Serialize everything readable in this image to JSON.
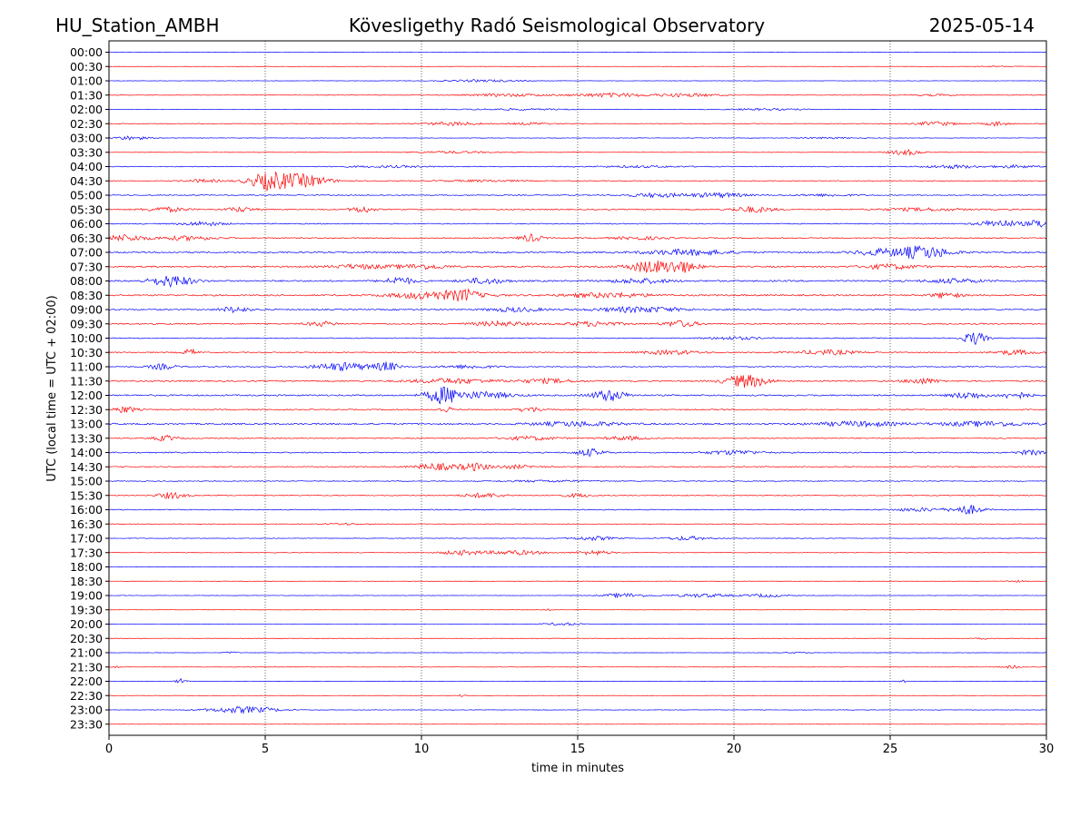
{
  "header": {
    "station": "HU_Station_AMBH",
    "observatory": "Kövesligethy Radó Seismological Observatory",
    "date": "2025-05-14"
  },
  "chart_data": {
    "type": "line",
    "title": "Kövesligethy Radó Seismological Observatory",
    "xlabel": "time in minutes",
    "ylabel": "UTC (local time = UTC + 02:00)",
    "xlim": [
      0,
      30
    ],
    "xticks": [
      0,
      5,
      10,
      15,
      20,
      25,
      30
    ],
    "grid": "vertical dotted lines at x ticks",
    "colors": {
      "even_row": "#0000ff",
      "odd_row": "#ff0000",
      "grid": "#000000"
    },
    "rows": [
      {
        "label": "00:00",
        "noise": 0.4,
        "events": []
      },
      {
        "label": "00:30",
        "noise": 0.4,
        "events": [
          [
            28.5,
            2,
            0.5
          ]
        ]
      },
      {
        "label": "01:00",
        "noise": 0.6,
        "events": [
          [
            12,
            3,
            1.2
          ]
        ]
      },
      {
        "label": "01:30",
        "noise": 0.8,
        "events": [
          [
            12.8,
            3,
            1.5
          ],
          [
            16,
            2.5,
            2.2
          ],
          [
            18.5,
            2.5,
            1.8
          ],
          [
            26.5,
            1.5,
            1
          ]
        ]
      },
      {
        "label": "02:00",
        "noise": 0.6,
        "events": [
          [
            13,
            4,
            0.9
          ],
          [
            21,
            3,
            1
          ]
        ]
      },
      {
        "label": "02:30",
        "noise": 0.9,
        "events": [
          [
            11,
            2,
            2
          ],
          [
            13.5,
            1.5,
            1.3
          ],
          [
            26.5,
            1.5,
            2.2
          ],
          [
            28.4,
            0.8,
            2.5
          ]
        ]
      },
      {
        "label": "03:00",
        "noise": 0.7,
        "events": [
          [
            0.7,
            1.2,
            2.2
          ],
          [
            23,
            2,
            0.8
          ]
        ]
      },
      {
        "label": "03:30",
        "noise": 0.7,
        "events": [
          [
            11,
            3,
            1.2
          ],
          [
            25.5,
            1.2,
            3
          ]
        ]
      },
      {
        "label": "04:00",
        "noise": 1.2,
        "events": [
          [
            9,
            3,
            1
          ],
          [
            17,
            3,
            1
          ],
          [
            27,
            2,
            1.8
          ],
          [
            29,
            1.5,
            1.5
          ]
        ]
      },
      {
        "label": "04:30",
        "noise": 1.1,
        "events": [
          [
            5.1,
            1.4,
            9
          ],
          [
            6.2,
            1.8,
            7
          ],
          [
            3,
            1.5,
            1.5
          ],
          [
            12,
            3,
            1
          ]
        ]
      },
      {
        "label": "05:00",
        "noise": 1.4,
        "events": [
          [
            17.5,
            2,
            2.2
          ],
          [
            19.5,
            2,
            2.5
          ],
          [
            23,
            2,
            1.2
          ]
        ]
      },
      {
        "label": "05:30",
        "noise": 1.7,
        "events": [
          [
            1.8,
            1.5,
            2.5
          ],
          [
            4.2,
            1,
            2.5
          ],
          [
            8.1,
            0.8,
            3.5
          ],
          [
            20.6,
            1.5,
            3
          ],
          [
            26,
            3,
            1.5
          ]
        ]
      },
      {
        "label": "06:00",
        "noise": 1.5,
        "events": [
          [
            3,
            1.5,
            2.2
          ],
          [
            28.5,
            1.5,
            4
          ],
          [
            29.8,
            0.8,
            4.5
          ]
        ]
      },
      {
        "label": "06:30",
        "noise": 1.7,
        "events": [
          [
            0.5,
            1.5,
            3.5
          ],
          [
            2.5,
            2,
            2.2
          ],
          [
            13.5,
            0.8,
            4
          ],
          [
            17,
            2,
            1.5
          ]
        ]
      },
      {
        "label": "07:00",
        "noise": 2.2,
        "events": [
          [
            18.5,
            3,
            3
          ],
          [
            26,
            2,
            7
          ],
          [
            24.5,
            1.5,
            3
          ]
        ]
      },
      {
        "label": "07:30",
        "noise": 2.2,
        "events": [
          [
            10,
            2,
            2.5
          ],
          [
            17.3,
            1.5,
            6.5
          ],
          [
            18.3,
            1.2,
            6
          ],
          [
            25,
            2,
            2.5
          ],
          [
            8,
            2,
            2.2
          ]
        ]
      },
      {
        "label": "08:00",
        "noise": 2.4,
        "events": [
          [
            2,
            1.5,
            6
          ],
          [
            9.3,
            1,
            4
          ],
          [
            12,
            1.5,
            3
          ],
          [
            17,
            2,
            2.5
          ],
          [
            27,
            2,
            2.2
          ]
        ]
      },
      {
        "label": "08:30",
        "noise": 2.2,
        "events": [
          [
            10.5,
            3,
            4.5
          ],
          [
            11.4,
            0.8,
            4
          ],
          [
            16,
            3,
            2.5
          ],
          [
            26.8,
            1,
            3
          ]
        ]
      },
      {
        "label": "09:00",
        "noise": 2.0,
        "events": [
          [
            4,
            1,
            3
          ],
          [
            17,
            3,
            3
          ],
          [
            13,
            2,
            2.2
          ]
        ]
      },
      {
        "label": "09:30",
        "noise": 1.9,
        "events": [
          [
            6.8,
            1,
            2.5
          ],
          [
            12.5,
            2,
            2.5
          ],
          [
            15.5,
            2,
            2.5
          ],
          [
            18.3,
            1.2,
            3.5
          ]
        ]
      },
      {
        "label": "10:00",
        "noise": 1.4,
        "events": [
          [
            27.7,
            0.8,
            7
          ],
          [
            20,
            2,
            1.5
          ]
        ]
      },
      {
        "label": "10:30",
        "noise": 1.7,
        "events": [
          [
            2.6,
            0.5,
            3.5
          ],
          [
            18,
            2,
            2.2
          ],
          [
            23,
            2,
            2.5
          ],
          [
            29,
            1.5,
            2.5
          ]
        ]
      },
      {
        "label": "11:00",
        "noise": 1.4,
        "events": [
          [
            1.7,
            1,
            3
          ],
          [
            7.5,
            2,
            4.5
          ],
          [
            8.9,
            0.8,
            5
          ],
          [
            11.5,
            2,
            1.8
          ]
        ]
      },
      {
        "label": "11:30",
        "noise": 2.0,
        "events": [
          [
            11,
            3,
            2.5
          ],
          [
            20.4,
            1.5,
            7
          ],
          [
            26,
            1.2,
            3
          ],
          [
            14,
            2,
            2.2
          ]
        ]
      },
      {
        "label": "12:00",
        "noise": 2.2,
        "events": [
          [
            10.7,
            1.2,
            9
          ],
          [
            12,
            2,
            3.5
          ],
          [
            16,
            1.2,
            6
          ],
          [
            27.5,
            1.2,
            3.5
          ],
          [
            29,
            1,
            3.5
          ]
        ]
      },
      {
        "label": "12:30",
        "noise": 1.7,
        "events": [
          [
            0.5,
            0.8,
            3.5
          ],
          [
            13.5,
            1,
            2.5
          ],
          [
            10.8,
            0.5,
            3
          ]
        ]
      },
      {
        "label": "13:00",
        "noise": 2.3,
        "events": [
          [
            15,
            3,
            2.5
          ],
          [
            24,
            3,
            2.5
          ],
          [
            28,
            3,
            2.5
          ]
        ]
      },
      {
        "label": "13:30",
        "noise": 1.6,
        "events": [
          [
            1.8,
            0.8,
            3
          ],
          [
            13.5,
            2,
            2
          ],
          [
            16.5,
            1.5,
            2
          ]
        ]
      },
      {
        "label": "14:00",
        "noise": 1.8,
        "events": [
          [
            15.4,
            1,
            4
          ],
          [
            20,
            2,
            2.2
          ],
          [
            29.5,
            1,
            2.5
          ]
        ]
      },
      {
        "label": "14:30",
        "noise": 1.6,
        "events": [
          [
            10.5,
            1.5,
            3.5
          ],
          [
            11.7,
            1,
            4
          ],
          [
            13,
            1.5,
            1.8
          ]
        ]
      },
      {
        "label": "15:00",
        "noise": 1.2,
        "events": [
          [
            14,
            3,
            1
          ]
        ]
      },
      {
        "label": "15:30",
        "noise": 1.3,
        "events": [
          [
            2,
            1,
            3.5
          ],
          [
            12,
            1.5,
            2.5
          ],
          [
            15,
            1,
            2
          ]
        ]
      },
      {
        "label": "16:00",
        "noise": 1.4,
        "events": [
          [
            27.5,
            1,
            5
          ],
          [
            26,
            2,
            1.8
          ]
        ]
      },
      {
        "label": "16:30",
        "noise": 0.8,
        "events": [
          [
            7.5,
            1.5,
            1
          ]
        ]
      },
      {
        "label": "17:00",
        "noise": 0.9,
        "events": [
          [
            15.5,
            1.5,
            2.2
          ],
          [
            18.5,
            1.5,
            2.2
          ]
        ]
      },
      {
        "label": "17:30",
        "noise": 0.9,
        "events": [
          [
            11.3,
            1.5,
            2.5
          ],
          [
            13,
            2,
            2.5
          ],
          [
            15.5,
            1.2,
            2.5
          ]
        ]
      },
      {
        "label": "18:00",
        "noise": 0.5,
        "events": []
      },
      {
        "label": "18:30",
        "noise": 0.5,
        "events": [
          [
            29,
            0.8,
            1
          ]
        ]
      },
      {
        "label": "19:00",
        "noise": 0.6,
        "events": [
          [
            16.5,
            1.5,
            2.5
          ],
          [
            19,
            2,
            2
          ],
          [
            21,
            1.5,
            1.8
          ]
        ]
      },
      {
        "label": "19:30",
        "noise": 0.4,
        "events": [
          [
            14,
            0.5,
            0.8
          ]
        ]
      },
      {
        "label": "20:00",
        "noise": 0.5,
        "events": [
          [
            14.5,
            1.5,
            1.5
          ]
        ]
      },
      {
        "label": "20:30",
        "noise": 0.5,
        "events": [
          [
            28,
            0.5,
            1
          ]
        ]
      },
      {
        "label": "21:00",
        "noise": 0.5,
        "events": [
          [
            3.9,
            0.5,
            1.2
          ],
          [
            22,
            1,
            0.7
          ]
        ]
      },
      {
        "label": "21:30",
        "noise": 0.5,
        "events": [
          [
            28.9,
            0.8,
            1.5
          ],
          [
            0.2,
            0.4,
            1
          ]
        ]
      },
      {
        "label": "22:00",
        "noise": 0.4,
        "events": [
          [
            2.3,
            0.4,
            3
          ],
          [
            25.4,
            0.3,
            1.5
          ]
        ]
      },
      {
        "label": "22:30",
        "noise": 0.4,
        "events": [
          [
            11.3,
            0.3,
            1.2
          ]
        ]
      },
      {
        "label": "23:00",
        "noise": 0.7,
        "events": [
          [
            4.3,
            2.5,
            3.5
          ]
        ]
      },
      {
        "label": "23:30",
        "noise": 0.4,
        "events": []
      }
    ]
  }
}
